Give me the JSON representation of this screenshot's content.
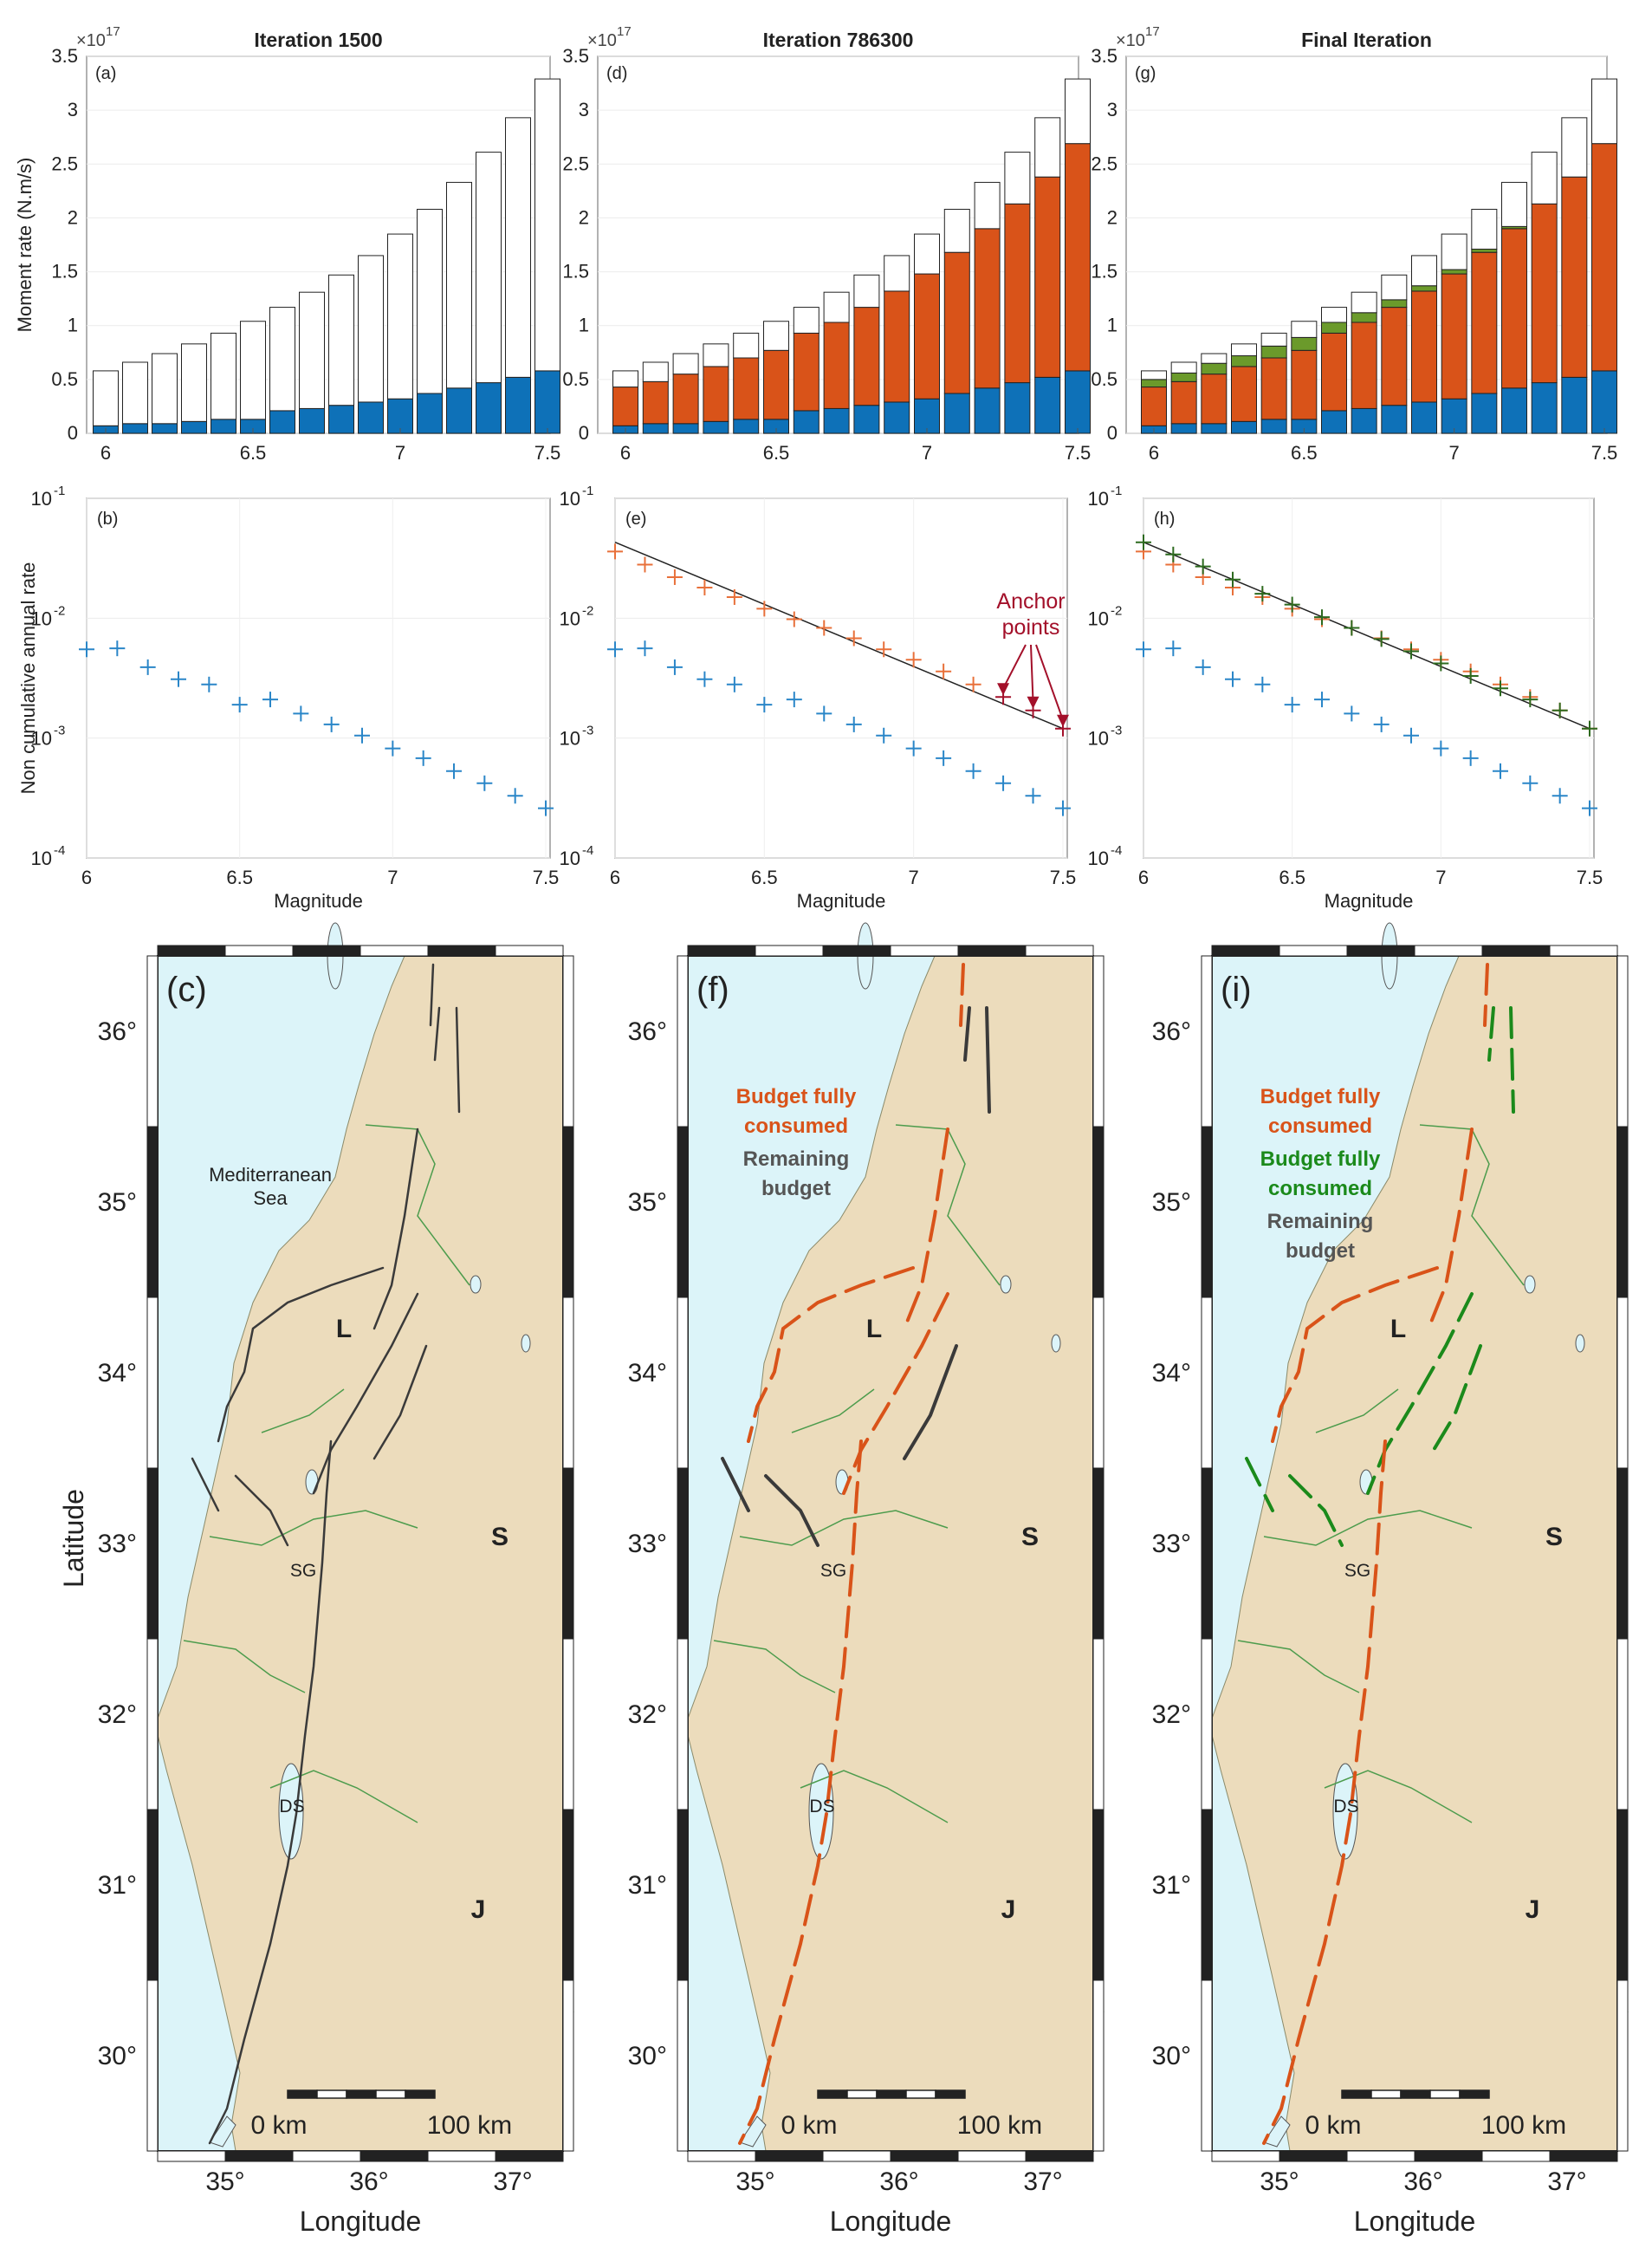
{
  "colors": {
    "blue": "#0e71b8",
    "orange": "#d95319",
    "green": "#6b9a2b",
    "dark_green": "#1b8a1b",
    "dark_red": "#a3102a",
    "land": "#ecdcbc",
    "sea": "#dcf4f9",
    "fault": "#3a3a3a",
    "border": "#4d9c4d"
  },
  "columns": [
    {
      "title": "Iteration 1500"
    },
    {
      "title": "Iteration 786300"
    },
    {
      "title": "Final Iteration"
    }
  ],
  "chart_data": [
    {
      "panel": "(a)",
      "type": "bar",
      "title": "Iteration 1500",
      "ylabel": "Moment rate (N.m/s)",
      "y_exponent": "17",
      "ylim": [
        0,
        3.5
      ],
      "yticks": [
        "0",
        "0.5",
        "1",
        "1.5",
        "2",
        "2.5",
        "3",
        "3.5"
      ],
      "xticks": [
        "6",
        "6.5",
        "7",
        "7.5"
      ],
      "x": [
        6.0,
        6.1,
        6.2,
        6.3,
        6.4,
        6.5,
        6.6,
        6.7,
        6.8,
        6.9,
        7.0,
        7.1,
        7.2,
        7.3,
        7.4,
        7.5
      ],
      "total": [
        0.58,
        0.66,
        0.74,
        0.83,
        0.93,
        1.04,
        1.17,
        1.31,
        1.47,
        1.65,
        1.85,
        2.08,
        2.33,
        2.61,
        2.93,
        3.29
      ],
      "series": [
        {
          "values": [
            0.07,
            0.09,
            0.09,
            0.11,
            0.13,
            0.13,
            0.21,
            0.23,
            0.26,
            0.29,
            0.32,
            0.37,
            0.42,
            0.47,
            0.52,
            0.58
          ]
        }
      ]
    },
    {
      "panel": "(d)",
      "type": "bar",
      "title": "Iteration 786300",
      "y_exponent": "17",
      "ylim": [
        0,
        3.5
      ],
      "yticks": [
        "0",
        "0.5",
        "1",
        "1.5",
        "2",
        "2.5",
        "3",
        "3.5"
      ],
      "xticks": [
        "6",
        "6.5",
        "7",
        "7.5"
      ],
      "x": [
        6.0,
        6.1,
        6.2,
        6.3,
        6.4,
        6.5,
        6.6,
        6.7,
        6.8,
        6.9,
        7.0,
        7.1,
        7.2,
        7.3,
        7.4,
        7.5
      ],
      "total": [
        0.58,
        0.66,
        0.74,
        0.83,
        0.93,
        1.04,
        1.17,
        1.31,
        1.47,
        1.65,
        1.85,
        2.08,
        2.33,
        2.61,
        2.93,
        3.29
      ],
      "series": [
        {
          "values": [
            0.07,
            0.09,
            0.09,
            0.11,
            0.13,
            0.13,
            0.21,
            0.23,
            0.26,
            0.29,
            0.32,
            0.37,
            0.42,
            0.47,
            0.52,
            0.58
          ]
        },
        {
          "values": [
            0.36,
            0.39,
            0.46,
            0.51,
            0.57,
            0.64,
            0.72,
            0.8,
            0.91,
            1.03,
            1.16,
            1.31,
            1.48,
            1.66,
            1.86,
            2.11
          ]
        }
      ]
    },
    {
      "panel": "(g)",
      "type": "bar",
      "title": "Final Iteration",
      "y_exponent": "17",
      "ylim": [
        0,
        3.5
      ],
      "yticks": [
        "0",
        "0.5",
        "1",
        "1.5",
        "2",
        "2.5",
        "3",
        "3.5"
      ],
      "xticks": [
        "6",
        "6.5",
        "7",
        "7.5"
      ],
      "x": [
        6.0,
        6.1,
        6.2,
        6.3,
        6.4,
        6.5,
        6.6,
        6.7,
        6.8,
        6.9,
        7.0,
        7.1,
        7.2,
        7.3,
        7.4,
        7.5
      ],
      "total": [
        0.58,
        0.66,
        0.74,
        0.83,
        0.93,
        1.04,
        1.17,
        1.31,
        1.47,
        1.65,
        1.85,
        2.08,
        2.33,
        2.61,
        2.93,
        3.29
      ],
      "series": [
        {
          "values": [
            0.07,
            0.09,
            0.09,
            0.11,
            0.13,
            0.13,
            0.21,
            0.23,
            0.26,
            0.29,
            0.32,
            0.37,
            0.42,
            0.47,
            0.52,
            0.58
          ]
        },
        {
          "values": [
            0.36,
            0.39,
            0.46,
            0.51,
            0.57,
            0.64,
            0.72,
            0.8,
            0.91,
            1.03,
            1.16,
            1.31,
            1.48,
            1.66,
            1.86,
            2.11
          ]
        },
        {
          "values": [
            0.07,
            0.08,
            0.1,
            0.1,
            0.11,
            0.12,
            0.1,
            0.09,
            0.07,
            0.05,
            0.04,
            0.03,
            0.02,
            0.0,
            0.0,
            0.0
          ]
        }
      ]
    },
    {
      "panel": "(b)",
      "type": "scatter",
      "xlabel": "Magnitude",
      "ylabel": "Non cumulative annual rate",
      "y_scale": "log",
      "ylim": [
        0.0001,
        0.1
      ],
      "yticks_exp": [
        "-1",
        "-2",
        "-3",
        "-4"
      ],
      "xticks": [
        "6",
        "6.5",
        "7",
        "7.5"
      ],
      "x": [
        6.0,
        6.1,
        6.2,
        6.3,
        6.4,
        6.5,
        6.6,
        6.7,
        6.8,
        6.9,
        7.0,
        7.1,
        7.2,
        7.3,
        7.4,
        7.5
      ],
      "series": [
        {
          "values": [
            0.0055,
            0.0056,
            0.0039,
            0.0031,
            0.0028,
            0.0019,
            0.0021,
            0.0016,
            0.0013,
            0.00105,
            0.00082,
            0.00068,
            0.00053,
            0.00042,
            0.00033,
            0.00026
          ]
        }
      ]
    },
    {
      "panel": "(e)",
      "type": "scatter",
      "xlabel": "Magnitude",
      "y_scale": "log",
      "ylim": [
        0.0001,
        0.1
      ],
      "yticks_exp": [
        "-1",
        "-2",
        "-3",
        "-4"
      ],
      "xticks": [
        "6",
        "6.5",
        "7",
        "7.5"
      ],
      "x": [
        6.0,
        6.1,
        6.2,
        6.3,
        6.4,
        6.5,
        6.6,
        6.7,
        6.8,
        6.9,
        7.0,
        7.1,
        7.2,
        7.3,
        7.4,
        7.5
      ],
      "series": [
        {
          "values": [
            0.0055,
            0.0056,
            0.0039,
            0.0031,
            0.0028,
            0.0019,
            0.0021,
            0.0016,
            0.0013,
            0.00105,
            0.00082,
            0.00068,
            0.00053,
            0.00042,
            0.00033,
            0.00026
          ]
        },
        {
          "values": [
            0.036,
            0.028,
            0.022,
            0.018,
            0.015,
            0.012,
            0.0098,
            0.0083,
            0.0068,
            0.0055,
            0.0045,
            0.0036,
            0.0028,
            0.0022,
            0.0017,
            0.0012
          ]
        }
      ],
      "fit_line": [
        [
          6.0,
          0.043
        ],
        [
          7.5,
          0.0012
        ]
      ],
      "annotation": {
        "text": [
          "Anchor",
          "points"
        ],
        "targets": [
          7.3,
          7.4,
          7.5
        ]
      }
    },
    {
      "panel": "(h)",
      "type": "scatter",
      "xlabel": "Magnitude",
      "y_scale": "log",
      "ylim": [
        0.0001,
        0.1
      ],
      "yticks_exp": [
        "-1",
        "-2",
        "-3",
        "-4"
      ],
      "xticks": [
        "6",
        "6.5",
        "7",
        "7.5"
      ],
      "x": [
        6.0,
        6.1,
        6.2,
        6.3,
        6.4,
        6.5,
        6.6,
        6.7,
        6.8,
        6.9,
        7.0,
        7.1,
        7.2,
        7.3,
        7.4,
        7.5
      ],
      "series": [
        {
          "values": [
            0.0055,
            0.0056,
            0.0039,
            0.0031,
            0.0028,
            0.0019,
            0.0021,
            0.0016,
            0.0013,
            0.00105,
            0.00082,
            0.00068,
            0.00053,
            0.00042,
            0.00033,
            0.00026
          ]
        },
        {
          "values": [
            0.036,
            0.028,
            0.022,
            0.018,
            0.015,
            0.012,
            0.0098,
            0.0083,
            0.0068,
            0.0055,
            0.0045,
            0.0036,
            0.0028,
            0.0022,
            0.0017,
            0.0012
          ]
        },
        {
          "values": [
            0.043,
            0.034,
            0.027,
            0.021,
            0.016,
            0.013,
            0.0102,
            0.0083,
            0.0067,
            0.0053,
            0.0042,
            0.0033,
            0.0026,
            0.0021,
            0.0017,
            0.0012
          ]
        }
      ],
      "fit_line": [
        [
          6.0,
          0.043
        ],
        [
          7.5,
          0.0012
        ]
      ]
    }
  ],
  "maps": [
    {
      "panel": "(c)",
      "legend": [],
      "labels": {
        "sea": [
          "Mediterranean",
          "Sea"
        ],
        "L": "L",
        "S": "S",
        "J": "J",
        "SG": "SG",
        "DS": "DS"
      }
    },
    {
      "panel": "(f)",
      "legend": [
        {
          "lines": [
            "Budget fully",
            "consumed"
          ],
          "color": "#d95319"
        },
        {
          "lines": [
            "Remaining",
            "budget"
          ],
          "color": "#555555"
        }
      ],
      "labels": {
        "L": "L",
        "S": "S",
        "J": "J",
        "SG": "SG",
        "DS": "DS"
      }
    },
    {
      "panel": "(i)",
      "legend": [
        {
          "lines": [
            "Budget fully",
            "consumed"
          ],
          "color": "#d95319"
        },
        {
          "lines": [
            "Budget fully",
            "consumed"
          ],
          "color": "#1b8a1b"
        },
        {
          "lines": [
            "Remaining",
            "budget"
          ],
          "color": "#555555"
        }
      ],
      "labels": {
        "L": "L",
        "S": "S",
        "J": "J",
        "SG": "SG",
        "DS": "DS"
      }
    }
  ],
  "map_axes": {
    "ylabel": "Latitude",
    "xlabel": "Longitude",
    "lat_ticks": [
      "36°",
      "35°",
      "34°",
      "33°",
      "32°",
      "31°",
      "30°"
    ],
    "lon_ticks": [
      "35°",
      "36°",
      "37°"
    ],
    "scale_bar": [
      "0 km",
      "100 km"
    ]
  }
}
